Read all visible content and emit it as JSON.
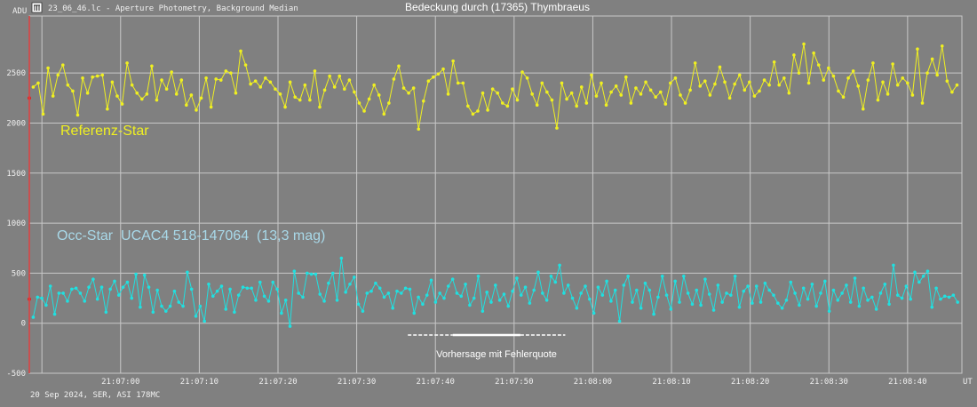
{
  "window": {
    "file_title": "23_06_46.lc - Aperture Photometry, Background Median",
    "icon": "app-logo-icon"
  },
  "footer": "20 Sep 2024, SER, ASI 178MC",
  "chart_data": {
    "type": "line",
    "title": "Bedeckung durch (17365) Thymbraeus",
    "ylabel": "ADU",
    "xlabel": "UT",
    "ylim": [
      -500,
      3070
    ],
    "yticks": [
      -500,
      0,
      500,
      1000,
      1500,
      2000,
      2500
    ],
    "xlim_seconds": [
      -11.6,
      106.9
    ],
    "xtick_origin": "21:07:00",
    "xticks": [
      {
        "t": 0,
        "label": "21:07:00"
      },
      {
        "t": 10,
        "label": "21:07:10"
      },
      {
        "t": 20,
        "label": "21:07:20"
      },
      {
        "t": 30,
        "label": "21:07:30"
      },
      {
        "t": 40,
        "label": "21:07:40"
      },
      {
        "t": 50,
        "label": "21:07:50"
      },
      {
        "t": 60,
        "label": "21:08:00"
      },
      {
        "t": 70,
        "label": "21:08:10"
      },
      {
        "t": 80,
        "label": "21:08:20"
      },
      {
        "t": 90,
        "label": "21:08:30"
      },
      {
        "t": 100,
        "label": "21:08:40"
      }
    ],
    "extra_gridline_t": -10,
    "grid": true,
    "t_start": -11.1,
    "t_step": 0.8,
    "series": [
      {
        "name": "Referenz-Star",
        "color": "#f0f020",
        "values": [
          2360,
          2400,
          2090,
          2550,
          2270,
          2480,
          2580,
          2380,
          2320,
          2080,
          2450,
          2300,
          2460,
          2470,
          2480,
          2140,
          2410,
          2270,
          2190,
          2600,
          2380,
          2300,
          2240,
          2290,
          2570,
          2230,
          2430,
          2340,
          2510,
          2290,
          2430,
          2180,
          2280,
          2130,
          2250,
          2450,
          2160,
          2440,
          2430,
          2520,
          2500,
          2300,
          2720,
          2580,
          2390,
          2420,
          2360,
          2450,
          2410,
          2340,
          2290,
          2160,
          2410,
          2260,
          2230,
          2380,
          2230,
          2520,
          2160,
          2330,
          2470,
          2360,
          2470,
          2340,
          2430,
          2310,
          2200,
          2120,
          2240,
          2380,
          2280,
          2090,
          2200,
          2440,
          2570,
          2350,
          2300,
          2350,
          1940,
          2220,
          2420,
          2460,
          2490,
          2540,
          2290,
          2620,
          2400,
          2400,
          2170,
          2090,
          2120,
          2300,
          2130,
          2340,
          2300,
          2200,
          2170,
          2340,
          2230,
          2510,
          2450,
          2290,
          2180,
          2400,
          2310,
          2230,
          1950,
          2400,
          2240,
          2300,
          2170,
          2360,
          2200,
          2480,
          2270,
          2400,
          2180,
          2310,
          2370,
          2280,
          2460,
          2200,
          2350,
          2290,
          2410,
          2330,
          2260,
          2310,
          2190,
          2400,
          2450,
          2280,
          2200,
          2330,
          2600,
          2370,
          2420,
          2280,
          2390,
          2560,
          2410,
          2250,
          2390,
          2480,
          2330,
          2410,
          2270,
          2320,
          2430,
          2380,
          2610,
          2380,
          2450,
          2300,
          2680,
          2500,
          2790,
          2400,
          2700,
          2580,
          2430,
          2550,
          2470,
          2320,
          2260,
          2450,
          2520,
          2370,
          2140,
          2430,
          2600,
          2230,
          2410,
          2290,
          2590,
          2380,
          2450,
          2400,
          2280,
          2740,
          2200,
          2500,
          2640,
          2480,
          2770,
          2420,
          2310,
          2380
        ]
      },
      {
        "name": "Occ-Star  UCAC4 518-147064  (13,3 mag)",
        "color": "#20e0e0",
        "values": [
          60,
          260,
          250,
          180,
          370,
          90,
          300,
          300,
          220,
          340,
          350,
          300,
          220,
          360,
          440,
          240,
          360,
          110,
          340,
          420,
          280,
          360,
          410,
          250,
          490,
          160,
          480,
          360,
          110,
          330,
          170,
          120,
          170,
          320,
          210,
          170,
          510,
          340,
          70,
          170,
          20,
          390,
          270,
          320,
          370,
          140,
          340,
          110,
          280,
          360,
          350,
          350,
          230,
          410,
          270,
          220,
          410,
          340,
          100,
          230,
          -30,
          520,
          300,
          260,
          500,
          490,
          490,
          290,
          220,
          400,
          500,
          230,
          650,
          310,
          390,
          460,
          190,
          120,
          300,
          320,
          400,
          350,
          260,
          300,
          150,
          320,
          300,
          350,
          340,
          100,
          260,
          190,
          280,
          430,
          210,
          300,
          250,
          370,
          440,
          300,
          270,
          390,
          180,
          250,
          470,
          120,
          310,
          210,
          380,
          230,
          290,
          170,
          320,
          450,
          280,
          360,
          200,
          330,
          510,
          300,
          230,
          470,
          410,
          580,
          300,
          380,
          250,
          150,
          300,
          370,
          240,
          100,
          360,
          280,
          420,
          220,
          330,
          20,
          380,
          470,
          210,
          330,
          150,
          400,
          330,
          90,
          260,
          470,
          280,
          140,
          420,
          210,
          470,
          300,
          190,
          330,
          180,
          440,
          290,
          130,
          380,
          210,
          300,
          280,
          470,
          160,
          320,
          370,
          200,
          370,
          210,
          400,
          330,
          280,
          200,
          150,
          230,
          410,
          300,
          180,
          350,
          240,
          390,
          170,
          300,
          420,
          120,
          330,
          230,
          300,
          380,
          210,
          450,
          170,
          350,
          230,
          260,
          140,
          300,
          390,
          190,
          580,
          280,
          250,
          370,
          240,
          510,
          410,
          470,
          520,
          160,
          350,
          240,
          270,
          260,
          280,
          210
        ]
      }
    ],
    "annotations": {
      "reference_label": "Referenz-Star",
      "occ_label": "Occ-Star  UCAC4 518-147064  (13,3 mag)",
      "prediction_label": "Vorhersage mit Fehlerquote"
    },
    "prediction": {
      "center_t": 46.5,
      "error_t": 4.3,
      "window_t": [
        36.5,
        56.5
      ]
    },
    "start_marker": {
      "t": -11.6,
      "ref_value": 2250,
      "occ_value": 240
    }
  }
}
